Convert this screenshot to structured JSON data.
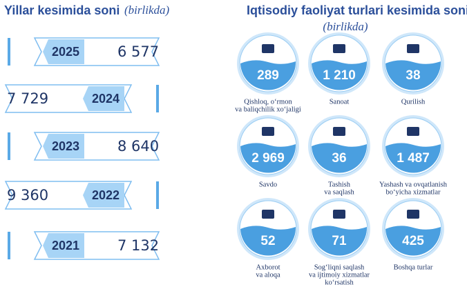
{
  "left": {
    "title": "Yillar kesimida soni",
    "subtitle": "(birlikda)",
    "rows": [
      {
        "year": "2025",
        "value": "6 577"
      },
      {
        "year": "2024",
        "value": "7 729"
      },
      {
        "year": "2023",
        "value": "8 640"
      },
      {
        "year": "2022",
        "value": "9 360"
      },
      {
        "year": "2021",
        "value": "7 132"
      }
    ]
  },
  "right": {
    "title": "Iqtisodiy faoliyat turlari kesimida soni",
    "subtitle": "(birlikda)",
    "items": [
      {
        "value": "289",
        "label": [
          "Qishloq, o‘rmon",
          "va baliqchilik xo‘jaligi"
        ]
      },
      {
        "value": "1 210",
        "label": [
          "Sanoat"
        ]
      },
      {
        "value": "38",
        "label": [
          "Qurilish"
        ]
      },
      {
        "value": "2 969",
        "label": [
          "Savdo"
        ]
      },
      {
        "value": "36",
        "label": [
          "Tashish",
          "va saqlash"
        ]
      },
      {
        "value": "1 487",
        "label": [
          "Yashash va ovqatlanish",
          "bo‘yicha xizmatlar"
        ]
      },
      {
        "value": "52",
        "label": [
          "Axborot",
          "va aloqa"
        ]
      },
      {
        "value": "71",
        "label": [
          "Sog‘liqni saqlash",
          "va ijtimoiy xizmatlar",
          "ko‘rsatish"
        ]
      },
      {
        "value": "425",
        "label": [
          "Boshqa turlar"
        ]
      }
    ]
  }
}
